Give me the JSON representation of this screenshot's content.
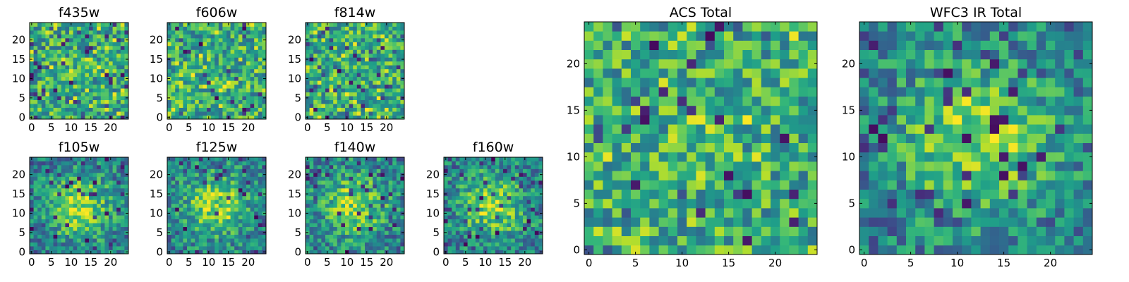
{
  "chart_data": [
    {
      "type": "heatmap",
      "title": "f435w",
      "grid_size": [
        25,
        25
      ],
      "x_ticks": [
        0,
        5,
        10,
        15,
        20
      ],
      "y_ticks": [
        0,
        5,
        10,
        15,
        20
      ],
      "pattern": "noise",
      "colormap": "viridis"
    },
    {
      "type": "heatmap",
      "title": "f606w",
      "grid_size": [
        25,
        25
      ],
      "x_ticks": [
        0,
        5,
        10,
        15,
        20
      ],
      "y_ticks": [
        0,
        5,
        10,
        15,
        20
      ],
      "pattern": "noise",
      "colormap": "viridis"
    },
    {
      "type": "heatmap",
      "title": "f814w",
      "grid_size": [
        25,
        25
      ],
      "x_ticks": [
        0,
        5,
        10,
        15,
        20
      ],
      "y_ticks": [
        0,
        5,
        10,
        15,
        20
      ],
      "pattern": "noise",
      "colormap": "viridis"
    },
    {
      "type": "heatmap",
      "title": "f105w",
      "grid_size": [
        25,
        25
      ],
      "x_ticks": [
        0,
        5,
        10,
        15,
        20
      ],
      "y_ticks": [
        0,
        5,
        10,
        15,
        20
      ],
      "pattern": "central-peak",
      "colormap": "viridis"
    },
    {
      "type": "heatmap",
      "title": "f125w",
      "grid_size": [
        25,
        25
      ],
      "x_ticks": [
        0,
        5,
        10,
        15,
        20
      ],
      "y_ticks": [
        0,
        5,
        10,
        15,
        20
      ],
      "pattern": "central-peak",
      "colormap": "viridis"
    },
    {
      "type": "heatmap",
      "title": "f140w",
      "grid_size": [
        25,
        25
      ],
      "x_ticks": [
        0,
        5,
        10,
        15,
        20
      ],
      "y_ticks": [
        0,
        5,
        10,
        15,
        20
      ],
      "pattern": "central-peak",
      "colormap": "viridis"
    },
    {
      "type": "heatmap",
      "title": "f160w",
      "grid_size": [
        25,
        25
      ],
      "x_ticks": [
        0,
        5,
        10,
        15,
        20
      ],
      "y_ticks": [
        0,
        5,
        10,
        15,
        20
      ],
      "pattern": "central-peak",
      "colormap": "viridis"
    },
    {
      "type": "heatmap",
      "title": "ACS Total",
      "grid_size": [
        25,
        25
      ],
      "x_ticks": [
        0,
        5,
        10,
        15,
        20
      ],
      "y_ticks": [
        0,
        5,
        10,
        15,
        20
      ],
      "pattern": "noise",
      "colormap": "viridis"
    },
    {
      "type": "heatmap",
      "title": "WFC3 IR Total",
      "grid_size": [
        25,
        25
      ],
      "x_ticks": [
        0,
        5,
        10,
        15,
        20
      ],
      "y_ticks": [
        0,
        5,
        10,
        15,
        20
      ],
      "pattern": "central-peak",
      "colormap": "viridis"
    }
  ]
}
